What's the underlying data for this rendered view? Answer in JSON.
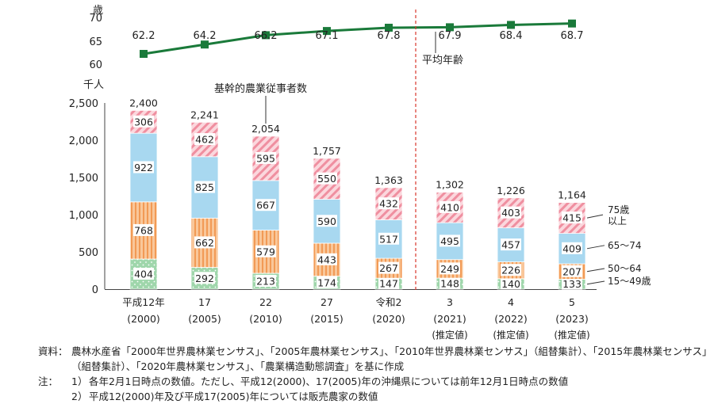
{
  "chart_data": [
    {
      "type": "line",
      "categories": [
        "平成12年",
        "17",
        "22",
        "27",
        "令和2",
        "3",
        "4",
        "5"
      ],
      "values": [
        62.2,
        64.2,
        66.2,
        67.1,
        67.8,
        67.9,
        68.4,
        68.7
      ],
      "series_label": "平均年齢",
      "ylabel": "歳",
      "yticks": [
        60,
        65,
        70
      ],
      "ylim": [
        60,
        70
      ],
      "color": "#1a7a3a"
    },
    {
      "type": "bar",
      "stacked": true,
      "title_label": "基幹的農業従事者数",
      "ylabel": "千人",
      "ylim": [
        0,
        2500
      ],
      "yticks": [
        "0",
        "500",
        "1,000",
        "1,500",
        "2,000",
        "2,500"
      ],
      "categories": [
        "平成12年",
        "17",
        "22",
        "27",
        "令和2",
        "3",
        "4",
        "5"
      ],
      "category_years": [
        "(2000)",
        "(2005)",
        "(2010)",
        "(2015)",
        "(2020)",
        "(2021)",
        "(2022)",
        "(2023)"
      ],
      "category_notes": [
        "",
        "",
        "",
        "",
        "",
        "(推定値)",
        "(推定値)",
        "(推定値)"
      ],
      "totals": [
        "2,400",
        "2,241",
        "2,054",
        "1,757",
        "1,363",
        "1,302",
        "1,226",
        "1,164"
      ],
      "series": [
        {
          "name": "15～49歳",
          "values": [
            404,
            292,
            213,
            174,
            147,
            148,
            140,
            133
          ],
          "color": "#8fcf9d"
        },
        {
          "name": "50～64",
          "values": [
            768,
            662,
            579,
            443,
            267,
            249,
            226,
            207
          ],
          "color": "#f6b27a"
        },
        {
          "name": "65～74",
          "values": [
            922,
            825,
            667,
            590,
            517,
            495,
            457,
            409
          ],
          "color": "#a8d8f0"
        },
        {
          "name": "75歳\n以上",
          "values": [
            306,
            462,
            595,
            550,
            432,
            410,
            403,
            415
          ],
          "color": "#f4a7b4"
        }
      ],
      "estimate_divider_after_index": 4,
      "divider_color": "#d9362b"
    }
  ],
  "notes": {
    "source_label": "資料：",
    "source_text": "農林水産省「2000年世界農林業センサス」、「2005年農林業センサス」、「2010年世界農林業センサス」（組替集計）、「2015年農林業センサス」（組替集計）、「2020年農林業センサス」、「農業構造動態調査」を基に作成",
    "note_label": "注：",
    "note1_num": "1）",
    "note1_text": "各年2月1日時点の数値。ただし、平成12(2000)、17(2005)年の沖縄県については前年12月1日時点の数値",
    "note2_num": "2）",
    "note2_text": "平成12(2000)年及び平成17(2005)年については販売農家の数値"
  }
}
